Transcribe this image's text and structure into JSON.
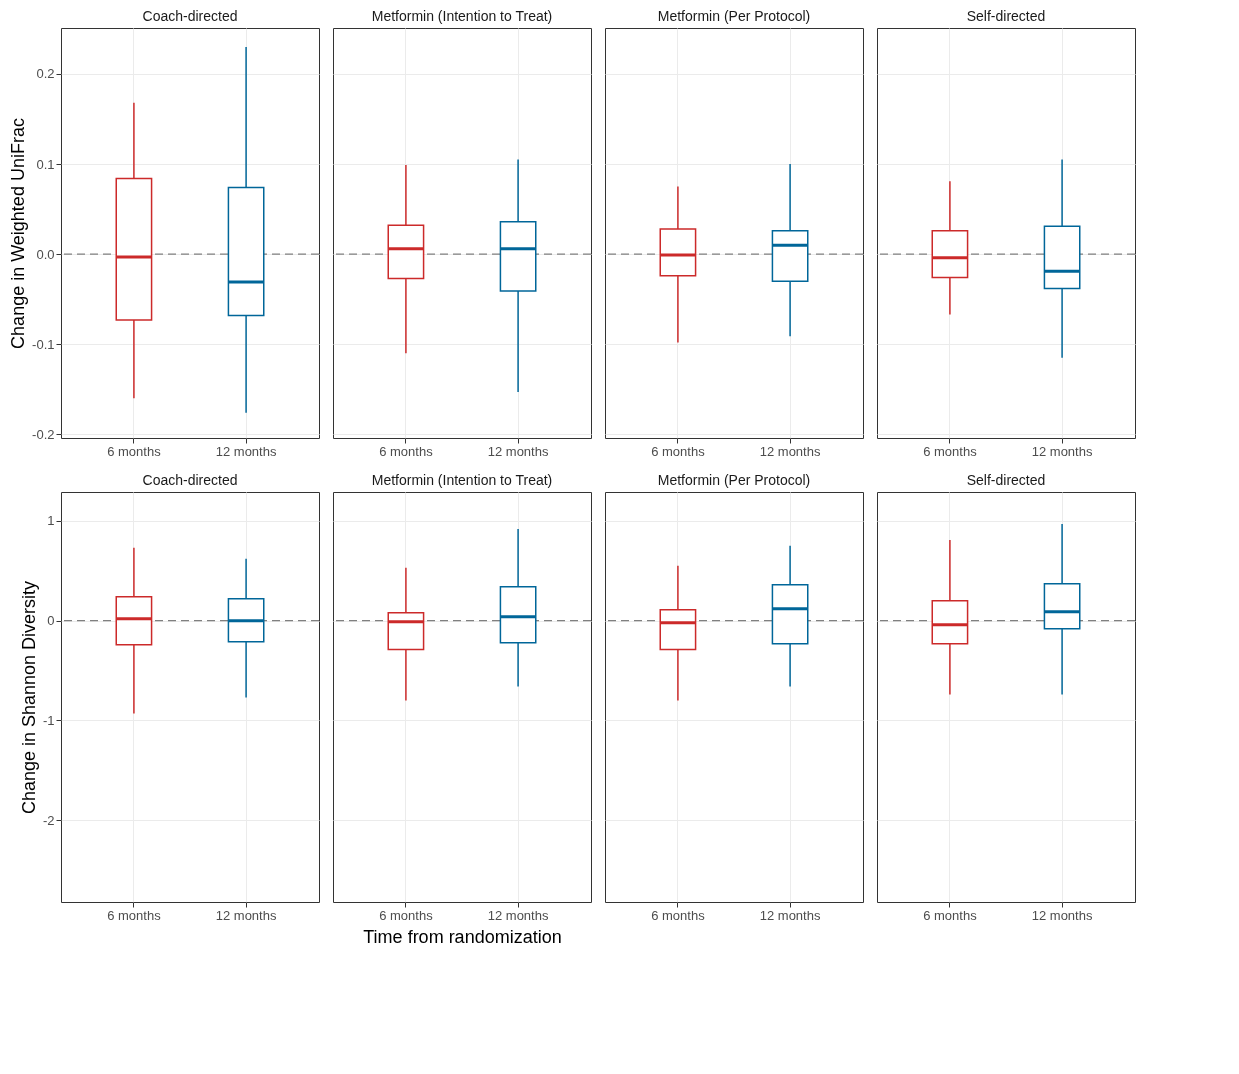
{
  "chart_data": [
    {
      "type": "box",
      "title": "Coach-directed",
      "ylabel": "Change in Weighted UniFrac",
      "categories": [
        "6 months",
        "12 months"
      ],
      "colors": [
        "#cc2a2a",
        "#006699"
      ],
      "ylim": [
        -0.204,
        0.251
      ],
      "yticks": [
        -0.2,
        -0.1,
        {
          "value": 0,
          "label": "0.0"
        },
        0.1,
        0.2
      ],
      "grid": true,
      "ref_lines": [
        {
          "axis": "y",
          "value": 0,
          "color": "#808080",
          "line_style": "dashed"
        }
      ],
      "boxes": [
        {
          "low": -0.16,
          "q1": -0.073,
          "median": -0.003,
          "q3": 0.084,
          "high": 0.168
        },
        {
          "low": -0.176,
          "q1": -0.068,
          "median": -0.031,
          "q3": 0.074,
          "high": 0.23
        }
      ]
    },
    {
      "type": "box",
      "title": "Metformin (Intention to Treat)",
      "categories": [
        "6 months",
        "12 months"
      ],
      "colors": [
        "#cc2a2a",
        "#006699"
      ],
      "ylim": [
        -0.204,
        0.251
      ],
      "yticks": [
        -0.2,
        -0.1,
        0.0,
        0.1,
        0.2
      ],
      "tick_labels": "x",
      "grid": true,
      "ref_lines": [
        {
          "axis": "y",
          "value": 0,
          "color": "#808080",
          "line_style": "dashed"
        }
      ],
      "boxes": [
        {
          "low": -0.11,
          "q1": -0.027,
          "median": 0.006,
          "q3": 0.032,
          "high": 0.099
        },
        {
          "low": -0.153,
          "q1": -0.041,
          "median": 0.006,
          "q3": 0.036,
          "high": 0.105
        }
      ]
    },
    {
      "type": "box",
      "title": "Metformin (Per Protocol)",
      "categories": [
        "6 months",
        "12 months"
      ],
      "colors": [
        "#cc2a2a",
        "#006699"
      ],
      "ylim": [
        -0.204,
        0.251
      ],
      "yticks": [
        -0.2,
        -0.1,
        0.0,
        0.1,
        0.2
      ],
      "tick_labels": "x",
      "grid": true,
      "ref_lines": [
        {
          "axis": "y",
          "value": 0,
          "color": "#808080",
          "line_style": "dashed"
        }
      ],
      "boxes": [
        {
          "low": -0.098,
          "q1": -0.024,
          "median": -0.001,
          "q3": 0.028,
          "high": 0.075
        },
        {
          "low": -0.091,
          "q1": -0.03,
          "median": 0.01,
          "q3": 0.026,
          "high": 0.1
        }
      ]
    },
    {
      "type": "box",
      "title": "Self-directed",
      "categories": [
        "6 months",
        "12 months"
      ],
      "colors": [
        "#cc2a2a",
        "#006699"
      ],
      "ylim": [
        -0.204,
        0.251
      ],
      "yticks": [
        -0.2,
        -0.1,
        0.0,
        0.1,
        0.2
      ],
      "tick_labels": "x",
      "grid": true,
      "ref_lines": [
        {
          "axis": "y",
          "value": 0,
          "color": "#808080",
          "line_style": "dashed"
        }
      ],
      "boxes": [
        {
          "low": -0.067,
          "q1": -0.026,
          "median": -0.004,
          "q3": 0.026,
          "high": 0.081
        },
        {
          "low": -0.115,
          "q1": -0.038,
          "median": -0.019,
          "q3": 0.031,
          "high": 0.105
        }
      ]
    },
    {
      "type": "box",
      "title": "Coach-directed",
      "ylabel": "Change in Shannon Diversity",
      "categories": [
        "6 months",
        "12 months"
      ],
      "colors": [
        "#cc2a2a",
        "#006699"
      ],
      "ylim": [
        -2.82,
        1.29
      ],
      "yticks": [
        -2,
        -1,
        0,
        1
      ],
      "grid": true,
      "ref_lines": [
        {
          "axis": "y",
          "value": 0,
          "color": "#808080",
          "line_style": "dashed"
        }
      ],
      "boxes": [
        {
          "low": -0.93,
          "q1": -0.24,
          "median": 0.02,
          "q3": 0.24,
          "high": 0.73
        },
        {
          "low": -0.77,
          "q1": -0.21,
          "median": 0.0,
          "q3": 0.22,
          "high": 0.62
        }
      ]
    },
    {
      "type": "box",
      "title": "Metformin (Intention to Treat)",
      "xlabel": "Time from randomization",
      "categories": [
        "6 months",
        "12 months"
      ],
      "colors": [
        "#cc2a2a",
        "#006699"
      ],
      "ylim": [
        -2.82,
        1.29
      ],
      "yticks": [
        -2,
        -1,
        0,
        1
      ],
      "tick_labels": "x",
      "grid": true,
      "ref_lines": [
        {
          "axis": "y",
          "value": 0,
          "color": "#808080",
          "line_style": "dashed"
        }
      ],
      "boxes": [
        {
          "low": -0.8,
          "q1": -0.29,
          "median": -0.01,
          "q3": 0.08,
          "high": 0.53
        },
        {
          "low": -0.66,
          "q1": -0.22,
          "median": 0.04,
          "q3": 0.34,
          "high": 0.92
        }
      ]
    },
    {
      "type": "box",
      "title": "Metformin (Per Protocol)",
      "categories": [
        "6 months",
        "12 months"
      ],
      "colors": [
        "#cc2a2a",
        "#006699"
      ],
      "ylim": [
        -2.82,
        1.29
      ],
      "yticks": [
        -2,
        -1,
        0,
        1
      ],
      "tick_labels": "x",
      "grid": true,
      "ref_lines": [
        {
          "axis": "y",
          "value": 0,
          "color": "#808080",
          "line_style": "dashed"
        }
      ],
      "boxes": [
        {
          "low": -0.8,
          "q1": -0.29,
          "median": -0.02,
          "q3": 0.11,
          "high": 0.55
        },
        {
          "low": -0.66,
          "q1": -0.23,
          "median": 0.12,
          "q3": 0.36,
          "high": 0.75
        }
      ]
    },
    {
      "type": "box",
      "title": "Self-directed",
      "categories": [
        "6 months",
        "12 months"
      ],
      "colors": [
        "#cc2a2a",
        "#006699"
      ],
      "ylim": [
        -2.82,
        1.29
      ],
      "yticks": [
        -2,
        -1,
        0,
        1
      ],
      "tick_labels": "x",
      "grid": true,
      "ref_lines": [
        {
          "axis": "y",
          "value": 0,
          "color": "#808080",
          "line_style": "dashed"
        }
      ],
      "boxes": [
        {
          "low": -0.74,
          "q1": -0.23,
          "median": -0.04,
          "q3": 0.2,
          "high": 0.81
        },
        {
          "low": -0.74,
          "q1": -0.08,
          "median": 0.09,
          "q3": 0.37,
          "high": 0.97
        }
      ]
    }
  ]
}
